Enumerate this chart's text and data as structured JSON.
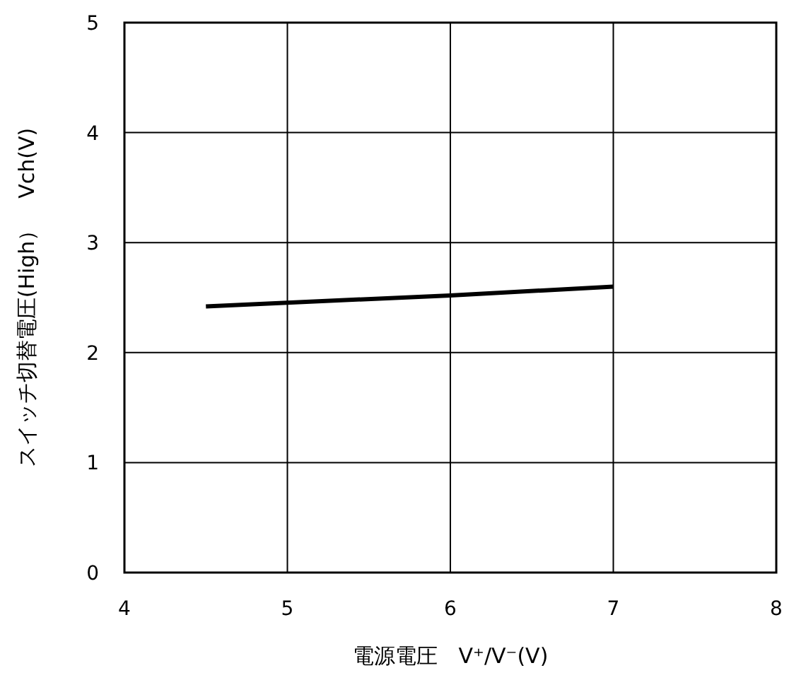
{
  "chart_data": {
    "type": "line",
    "xlabel": "電源電圧　V⁺/V⁻(V)",
    "ylabel": "スイッチ切替電圧(High）　Vch(V)",
    "x": [
      4.5,
      6,
      7
    ],
    "series": [
      {
        "color": "#000000",
        "values": [
          2.42,
          2.52,
          2.6
        ]
      }
    ],
    "xlim": [
      4,
      8
    ],
    "ylim": [
      0,
      5
    ],
    "xticks": [
      4,
      5,
      6,
      7,
      8
    ],
    "yticks": [
      0,
      1,
      2,
      3,
      4,
      5
    ],
    "grid": true
  }
}
